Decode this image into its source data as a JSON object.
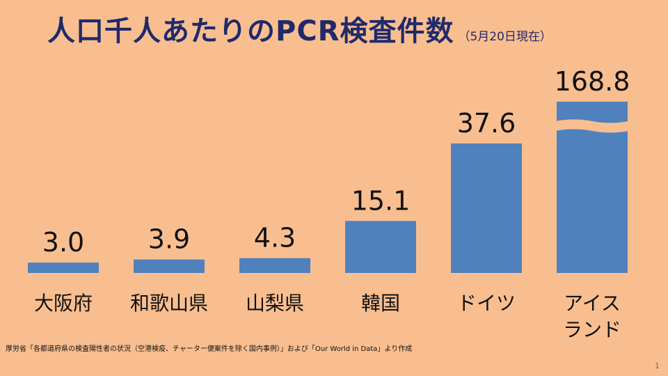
{
  "slide": {
    "title": "人口千人あたりのPCR検査件数",
    "title_date": "（5月20日現在）",
    "source": "厚労省「各都道府県の検査陽性者の状況（空港検疫、チャーター便案件を除く国内事例）」および「Our World in Data」より作成",
    "page_number": "1"
  },
  "colors": {
    "background": "#f9be8f",
    "bar": "#4f81bd",
    "title": "#1f2a6b"
  },
  "chart_data": {
    "type": "bar",
    "title": "人口千人あたりのPCR検査件数",
    "subtitle": "（5月20日現在）",
    "categories": [
      [
        "大阪府"
      ],
      [
        "和歌山県"
      ],
      [
        "山梨県"
      ],
      [
        "韓国"
      ],
      [
        "ドイツ"
      ],
      [
        "アイス",
        "ランド"
      ]
    ],
    "values": [
      3.0,
      3.9,
      4.3,
      15.1,
      37.6,
      168.8
    ],
    "value_labels": [
      "3.0",
      "3.9",
      "4.3",
      "15.1",
      "37.6",
      "168.8"
    ],
    "axis_break": {
      "bar_index": 5,
      "note": "bar truncated with a wavy break"
    },
    "grid": false,
    "legend": "none"
  }
}
